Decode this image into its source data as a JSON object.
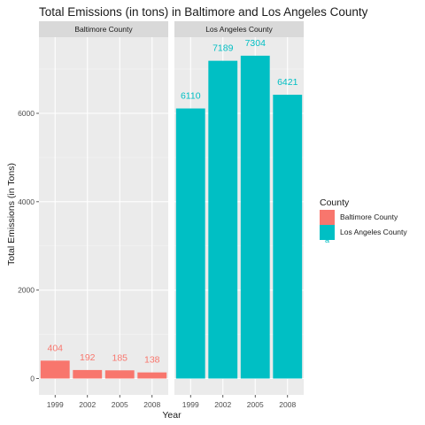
{
  "chart_data": {
    "type": "bar",
    "title": "Total Emissions (in tons) in Baltimore and Los Angeles County",
    "xlabel": "Year",
    "ylabel": "Total Emissions (in Tons)",
    "categories": [
      "1999",
      "2002",
      "2005",
      "2008"
    ],
    "ylim": [
      0,
      7700
    ],
    "yticks": [
      0,
      2000,
      4000,
      6000
    ],
    "grid": true,
    "legend_position": "right",
    "legend_title": "County",
    "legend_glyph_letter": "a",
    "panels": [
      {
        "name": "Baltimore County",
        "color": "#F8766D",
        "values": [
          404,
          192,
          185,
          138
        ],
        "value_labels": [
          "404",
          "192",
          "185",
          "138"
        ]
      },
      {
        "name": "Los Angeles County",
        "color": "#00BFC4",
        "values": [
          6110,
          7189,
          7304,
          6421
        ],
        "value_labels": [
          "6110",
          "7189",
          "7304",
          "6421"
        ]
      }
    ]
  }
}
